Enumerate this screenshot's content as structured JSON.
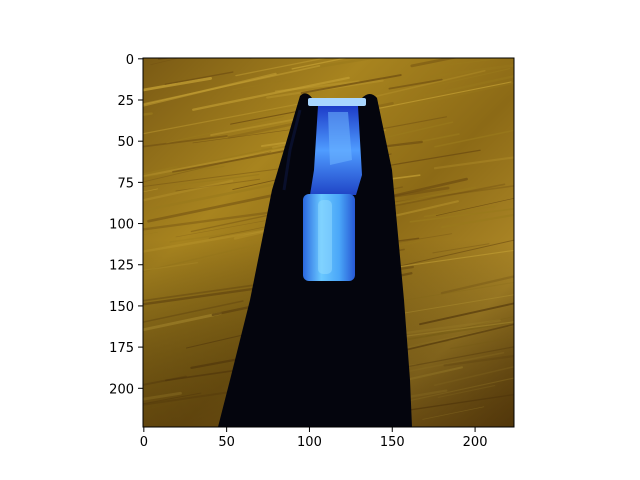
{
  "chart_data": {
    "type": "image",
    "title": "",
    "xlabel": "",
    "ylabel": "",
    "image_size": [
      224,
      224
    ],
    "xlim": [
      -0.5,
      223.5
    ],
    "ylim": [
      223.5,
      -0.5
    ],
    "xticks": [
      0,
      50,
      100,
      150,
      200
    ],
    "xtick_labels": [
      "0",
      "50",
      "100",
      "150",
      "200"
    ],
    "yticks": [
      0,
      25,
      50,
      75,
      100,
      125,
      150,
      175,
      200
    ],
    "ytick_labels": [
      "0",
      "25",
      "50",
      "75",
      "100",
      "125",
      "150",
      "175",
      "200"
    ],
    "image_content": {
      "background": "wood-grain-surface",
      "foreground": "black-tape-dispenser",
      "detail": "blue-tape-roll"
    },
    "colors": {
      "wood_dark": "#6b4a10",
      "wood_mid": "#9a7a1c",
      "wood_light": "#c6a235",
      "dispenser": "#04050d",
      "tape_bright": "#5ec0ff",
      "tape_mid": "#2f7fe8",
      "tape_dark": "#1a3fc0"
    }
  }
}
